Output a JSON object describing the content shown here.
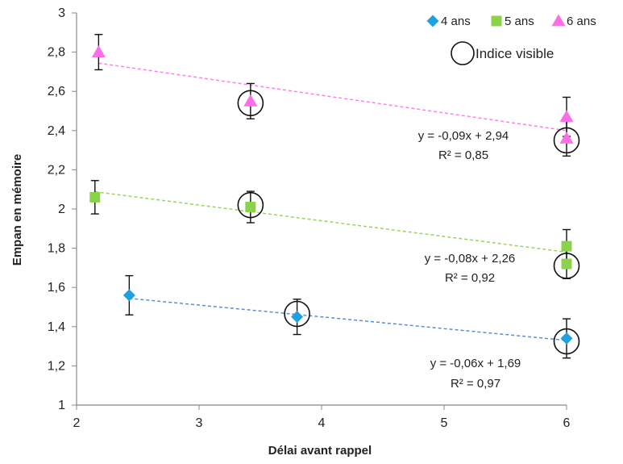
{
  "chart_data": {
    "type": "scatter",
    "xlabel": "Délai avant rappel",
    "ylabel": "Empan en mémoire",
    "xlim": [
      2,
      6
    ],
    "ylim": [
      1,
      3
    ],
    "x_ticks": [
      "2",
      "3",
      "4",
      "5",
      "6"
    ],
    "y_ticks": [
      "1",
      "1,2",
      "1,4",
      "1,6",
      "1,8",
      "2",
      "2,2",
      "2,4",
      "2,6",
      "2,8",
      "3"
    ],
    "grid": false,
    "legend_position": "top-right",
    "series": [
      {
        "name": "4 ans",
        "marker": "diamond",
        "color": "#1fa0e0",
        "points": [
          {
            "x": 2.43,
            "y": 1.56,
            "err": 0.1
          },
          {
            "x": 3.8,
            "y": 1.45,
            "err": 0.09
          },
          {
            "x": 6.0,
            "y": 1.34,
            "err": 0.1
          }
        ],
        "trend": {
          "slope": -0.06,
          "intercept": 1.69,
          "color": "#5b8fd0"
        },
        "equation": "y = -0,06x + 1,69",
        "r2": "R² = 0,97"
      },
      {
        "name": "5 ans",
        "marker": "square",
        "color": "#8bd24a",
        "points": [
          {
            "x": 2.15,
            "y": 2.06,
            "err": 0.085
          },
          {
            "x": 3.42,
            "y": 2.01,
            "err": 0.08
          },
          {
            "x": 6.0,
            "y": 1.81,
            "err": 0.085
          },
          {
            "x": 6.0,
            "y": 1.72,
            "err": 0.075
          }
        ],
        "trend": {
          "slope": -0.08,
          "intercept": 2.26,
          "color": "#9bd35a"
        },
        "equation": "y = -0,08x + 2,26",
        "r2": "R² = 0,92"
      },
      {
        "name": "6 ans",
        "marker": "triangle",
        "color": "#ff6ee8",
        "points": [
          {
            "x": 2.18,
            "y": 2.8,
            "err": 0.09
          },
          {
            "x": 3.42,
            "y": 2.55,
            "err": 0.09
          },
          {
            "x": 6.0,
            "y": 2.47,
            "err": 0.1
          },
          {
            "x": 6.0,
            "y": 2.36,
            "err": 0.09
          }
        ],
        "trend": {
          "slope": -0.09,
          "intercept": 2.94,
          "color": "#ff7cf0"
        },
        "equation": "y = -0,09x + 2,94",
        "r2": "R² = 0,85"
      }
    ],
    "visible_cue": {
      "label": "Indice visible",
      "marker": "open-circle",
      "points": [
        {
          "x": 3.42,
          "y": 2.54
        },
        {
          "x": 6.0,
          "y": 2.35
        },
        {
          "x": 3.42,
          "y": 2.02
        },
        {
          "x": 6.0,
          "y": 1.71
        },
        {
          "x": 3.8,
          "y": 1.465
        },
        {
          "x": 6.0,
          "y": 1.325
        }
      ]
    }
  }
}
